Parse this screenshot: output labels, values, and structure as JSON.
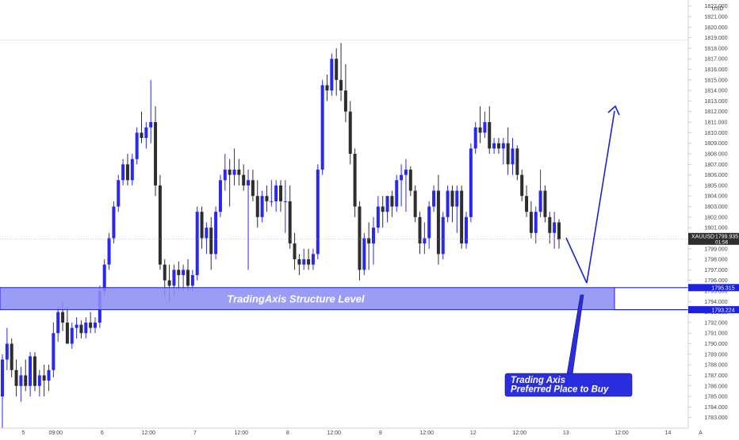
{
  "chart_data": {
    "type": "candlestick",
    "symbol": "XAUUSD",
    "currency": "USD",
    "last_price": "1799.935",
    "countdown": "01:56",
    "ylim": [
      1782.0,
      1822.5
    ],
    "y_ticks": [
      "1782.000",
      "1783.000",
      "1784.000",
      "1785.000",
      "1786.000",
      "1787.000",
      "1788.000",
      "1789.000",
      "1790.000",
      "1791.000",
      "1792.000",
      "1793.000",
      "1794.000",
      "1795.000",
      "1796.000",
      "1797.000",
      "1798.000",
      "1799.000",
      "1800.000",
      "1801.000",
      "1802.000",
      "1803.000",
      "1804.000",
      "1805.000",
      "1806.000",
      "1807.000",
      "1808.000",
      "1809.000",
      "1810.000",
      "1811.000",
      "1812.000",
      "1813.000",
      "1814.000",
      "1815.000",
      "1816.000",
      "1817.000",
      "1818.000",
      "1819.000",
      "1820.000",
      "1821.000",
      "1822.000"
    ],
    "x_ticks": [
      {
        "label": "5",
        "index": 4.5
      },
      {
        "label": "09:00",
        "index": 11.5
      },
      {
        "label": "6",
        "index": 21.5
      },
      {
        "label": "12:00",
        "index": 31.5
      },
      {
        "label": "7",
        "index": 41.5
      },
      {
        "label": "12:00",
        "index": 51.5
      },
      {
        "label": "8",
        "index": 61.5
      },
      {
        "label": "12:00",
        "index": 71.5
      },
      {
        "label": "9",
        "index": 81.5
      },
      {
        "label": "12:00",
        "index": 91.5
      },
      {
        "label": "12",
        "index": 101.5
      },
      {
        "label": "12:00",
        "index": 111.5
      },
      {
        "label": "13",
        "index": 121.5
      },
      {
        "label": "12:00",
        "index": 133.5
      },
      {
        "label": "14",
        "index": 143.5
      },
      {
        "label": "A",
        "index": 150.5
      }
    ],
    "candles": [
      [
        1785.0,
        1789.0,
        1782.0,
        1788.5
      ],
      [
        1788.5,
        1791.5,
        1787.5,
        1790.0
      ],
      [
        1790.0,
        1790.5,
        1786.8,
        1787.5
      ],
      [
        1787.5,
        1788.5,
        1785.0,
        1786.0
      ],
      [
        1786.0,
        1787.8,
        1784.5,
        1787.0
      ],
      [
        1787.0,
        1788.5,
        1785.5,
        1786.0
      ],
      [
        1786.0,
        1789.2,
        1785.0,
        1788.8
      ],
      [
        1788.8,
        1789.2,
        1785.5,
        1786.0
      ],
      [
        1786.0,
        1787.5,
        1785.0,
        1787.0
      ],
      [
        1787.0,
        1788.0,
        1785.0,
        1786.5
      ],
      [
        1786.5,
        1788.0,
        1785.5,
        1787.5
      ],
      [
        1787.5,
        1792.0,
        1786.8,
        1791.0
      ],
      [
        1791.0,
        1793.5,
        1790.2,
        1793.0
      ],
      [
        1793.0,
        1794.0,
        1791.2,
        1792.0
      ],
      [
        1792.0,
        1793.5,
        1790.2,
        1790.0
      ],
      [
        1790.0,
        1792.0,
        1789.5,
        1791.5
      ],
      [
        1791.5,
        1792.5,
        1790.5,
        1791.8
      ],
      [
        1791.8,
        1792.2,
        1790.5,
        1791.0
      ],
      [
        1791.0,
        1792.5,
        1790.5,
        1792.0
      ],
      [
        1792.0,
        1793.0,
        1791.0,
        1791.5
      ],
      [
        1791.5,
        1792.5,
        1791.0,
        1792.0
      ],
      [
        1792.0,
        1795.5,
        1791.5,
        1795.0
      ],
      [
        1795.0,
        1798.0,
        1794.5,
        1797.5
      ],
      [
        1797.5,
        1800.5,
        1797.0,
        1800.0
      ],
      [
        1800.0,
        1803.5,
        1799.5,
        1803.0
      ],
      [
        1803.0,
        1806.0,
        1802.5,
        1805.5
      ],
      [
        1805.5,
        1807.5,
        1805.0,
        1807.0
      ],
      [
        1807.0,
        1808.0,
        1805.0,
        1805.5
      ],
      [
        1805.5,
        1808.0,
        1805.0,
        1807.5
      ],
      [
        1807.5,
        1810.5,
        1807.0,
        1810.0
      ],
      [
        1810.0,
        1812.0,
        1809.0,
        1809.5
      ],
      [
        1809.5,
        1811.0,
        1808.5,
        1810.5
      ],
      [
        1810.5,
        1815.0,
        1809.0,
        1811.0
      ],
      [
        1811.0,
        1812.5,
        1804.0,
        1805.0
      ],
      [
        1805.0,
        1806.0,
        1797.0,
        1797.5
      ],
      [
        1797.5,
        1798.0,
        1794.5,
        1796.0
      ],
      [
        1796.0,
        1797.5,
        1794.0,
        1795.5
      ],
      [
        1795.5,
        1797.5,
        1794.5,
        1797.0
      ],
      [
        1797.0,
        1797.8,
        1795.0,
        1796.5
      ],
      [
        1796.5,
        1797.5,
        1795.0,
        1797.0
      ],
      [
        1797.0,
        1798.0,
        1795.0,
        1795.5
      ],
      [
        1795.5,
        1797.0,
        1795.0,
        1796.5
      ],
      [
        1796.5,
        1803.0,
        1796.0,
        1802.5
      ],
      [
        1802.5,
        1803.0,
        1799.0,
        1800.0
      ],
      [
        1800.0,
        1801.5,
        1798.5,
        1801.0
      ],
      [
        1801.0,
        1802.0,
        1797.0,
        1798.5
      ],
      [
        1798.5,
        1803.0,
        1798.0,
        1802.5
      ],
      [
        1802.5,
        1806.0,
        1802.0,
        1805.5
      ],
      [
        1805.5,
        1808.0,
        1804.5,
        1806.5
      ],
      [
        1806.5,
        1807.5,
        1803.0,
        1806.0
      ],
      [
        1806.0,
        1808.5,
        1805.0,
        1806.5
      ],
      [
        1806.5,
        1807.5,
        1805.0,
        1806.0
      ],
      [
        1806.0,
        1807.0,
        1804.5,
        1805.0
      ],
      [
        1805.0,
        1806.5,
        1797.0,
        1805.5
      ],
      [
        1805.5,
        1806.5,
        1803.5,
        1804.0
      ],
      [
        1804.0,
        1805.5,
        1801.0,
        1802.0
      ],
      [
        1802.0,
        1804.5,
        1801.5,
        1804.0
      ],
      [
        1804.0,
        1805.0,
        1802.5,
        1803.5
      ],
      [
        1803.5,
        1805.5,
        1803.0,
        1803.5
      ],
      [
        1803.5,
        1805.5,
        1802.5,
        1805.0
      ],
      [
        1805.0,
        1805.5,
        1802.5,
        1803.5
      ],
      [
        1803.5,
        1805.5,
        1800.5,
        1803.5
      ],
      [
        1803.5,
        1805.0,
        1799.0,
        1799.5
      ],
      [
        1799.5,
        1800.5,
        1797.0,
        1798.0
      ],
      [
        1798.0,
        1798.5,
        1796.5,
        1797.5
      ],
      [
        1797.5,
        1799.0,
        1797.0,
        1798.0
      ],
      [
        1798.0,
        1799.0,
        1797.0,
        1797.5
      ],
      [
        1797.5,
        1799.0,
        1797.0,
        1798.5
      ],
      [
        1798.5,
        1807.0,
        1798.0,
        1806.5
      ],
      [
        1806.5,
        1815.0,
        1806.0,
        1814.5
      ],
      [
        1814.5,
        1815.5,
        1813.0,
        1814.0
      ],
      [
        1814.0,
        1817.5,
        1813.5,
        1817.0
      ],
      [
        1817.0,
        1818.0,
        1813.5,
        1815.0
      ],
      [
        1815.0,
        1818.5,
        1813.0,
        1814.0
      ],
      [
        1814.0,
        1816.5,
        1811.0,
        1812.0
      ],
      [
        1812.0,
        1813.0,
        1807.0,
        1808.0
      ],
      [
        1808.0,
        1808.5,
        1802.0,
        1803.0
      ],
      [
        1803.0,
        1803.5,
        1796.0,
        1797.0
      ],
      [
        1797.0,
        1800.5,
        1796.5,
        1800.0
      ],
      [
        1800.0,
        1801.5,
        1797.0,
        1799.5
      ],
      [
        1799.5,
        1802.0,
        1797.5,
        1801.0
      ],
      [
        1801.0,
        1804.0,
        1800.5,
        1803.0
      ],
      [
        1803.0,
        1804.0,
        1801.0,
        1802.5
      ],
      [
        1802.5,
        1804.0,
        1801.5,
        1804.0
      ],
      [
        1804.0,
        1804.5,
        1802.0,
        1803.0
      ],
      [
        1803.0,
        1806.0,
        1802.5,
        1805.5
      ],
      [
        1805.5,
        1807.0,
        1803.0,
        1806.0
      ],
      [
        1806.0,
        1807.5,
        1802.5,
        1806.5
      ],
      [
        1806.5,
        1806.8,
        1804.0,
        1804.5
      ],
      [
        1804.5,
        1805.0,
        1801.5,
        1802.0
      ],
      [
        1802.0,
        1802.5,
        1798.5,
        1799.5
      ],
      [
        1799.5,
        1801.5,
        1798.5,
        1800.0
      ],
      [
        1800.0,
        1803.5,
        1799.0,
        1803.0
      ],
      [
        1803.0,
        1805.0,
        1802.5,
        1804.5
      ],
      [
        1804.5,
        1806.0,
        1797.5,
        1798.5
      ],
      [
        1798.5,
        1802.5,
        1798.0,
        1802.0
      ],
      [
        1802.0,
        1805.0,
        1801.5,
        1804.5
      ],
      [
        1804.5,
        1805.0,
        1801.5,
        1803.0
      ],
      [
        1803.0,
        1805.0,
        1800.5,
        1804.5
      ],
      [
        1804.5,
        1805.0,
        1799.0,
        1799.5
      ],
      [
        1799.5,
        1802.5,
        1799.0,
        1802.0
      ],
      [
        1802.0,
        1809.0,
        1801.5,
        1808.5
      ],
      [
        1808.5,
        1811.0,
        1808.0,
        1810.5
      ],
      [
        1810.5,
        1812.5,
        1809.0,
        1810.0
      ],
      [
        1810.0,
        1812.0,
        1809.5,
        1811.0
      ],
      [
        1811.0,
        1812.5,
        1808.0,
        1808.5
      ],
      [
        1808.5,
        1809.5,
        1808.0,
        1809.0
      ],
      [
        1809.0,
        1809.5,
        1808.0,
        1808.5
      ],
      [
        1808.5,
        1809.5,
        1807.0,
        1809.0
      ],
      [
        1809.0,
        1810.5,
        1806.0,
        1807.0
      ],
      [
        1807.0,
        1809.5,
        1806.0,
        1808.5
      ],
      [
        1808.5,
        1808.8,
        1805.5,
        1806.0
      ],
      [
        1806.0,
        1806.5,
        1803.5,
        1804.0
      ],
      [
        1804.0,
        1805.0,
        1802.0,
        1802.5
      ],
      [
        1802.5,
        1803.5,
        1800.0,
        1800.5
      ],
      [
        1800.5,
        1803.0,
        1799.5,
        1802.5
      ],
      [
        1802.5,
        1806.5,
        1802.0,
        1804.5
      ],
      [
        1804.5,
        1805.0,
        1801.5,
        1802.0
      ],
      [
        1802.0,
        1802.5,
        1799.5,
        1800.5
      ],
      [
        1800.5,
        1802.5,
        1799.0,
        1801.5
      ],
      [
        1801.5,
        1801.8,
        1799.0,
        1799.9
      ]
    ],
    "zone": {
      "label": "TradingAxis Structure Level",
      "top": 1795.315,
      "bottom": 1793.224,
      "top_label": "1795.315",
      "bottom_label": "1793.224"
    },
    "annotation": "Trading Axis\nPreferred Place to Buy",
    "colors": {
      "up": "#2828f0",
      "down": "#2e2e2e",
      "zone_fill": "#8d90f4",
      "zone_edge": "#1c22dc",
      "arrow": "#1a24d0",
      "callout": "#2a2ee0",
      "price_tag": "#2e2e2e",
      "background": "#ffffff",
      "axis_text": "#444444"
    }
  }
}
